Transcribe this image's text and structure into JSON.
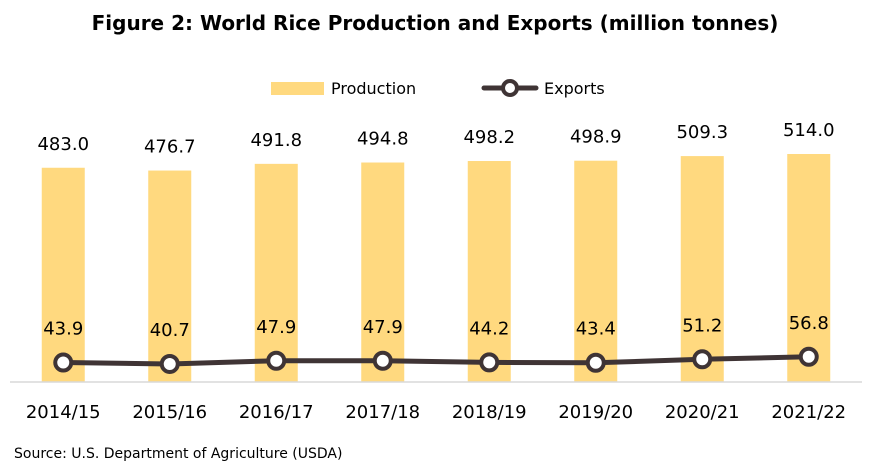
{
  "chart_data": {
    "type": "bar",
    "title": "Figure 2: World Rice Production and Exports (million tonnes)",
    "categories": [
      "2014/15",
      "2015/16",
      "2016/17",
      "2017/18",
      "2018/19",
      "2019/20",
      "2020/21",
      "2021/22"
    ],
    "series": [
      {
        "name": "Production",
        "type": "bar",
        "values": [
          483.0,
          476.7,
          491.8,
          494.8,
          498.2,
          498.9,
          509.3,
          514.0
        ],
        "labels": [
          "483.0",
          "476.7",
          "491.8",
          "494.8",
          "498.2",
          "498.9",
          "509.3",
          "514.0"
        ],
        "color": "#FFD97F"
      },
      {
        "name": "Exports",
        "type": "line",
        "values": [
          43.9,
          40.7,
          47.9,
          47.9,
          44.2,
          43.4,
          51.2,
          56.8
        ],
        "labels": [
          "43.9",
          "40.7",
          "47.9",
          "47.9",
          "44.2",
          "43.4",
          "51.2",
          "56.8"
        ],
        "color": "#3F3435"
      }
    ],
    "ylim": [
      0,
      580
    ],
    "grid": false,
    "legend_position": "top-center"
  },
  "source": "Source: U.S. Department of Agriculture (USDA)"
}
